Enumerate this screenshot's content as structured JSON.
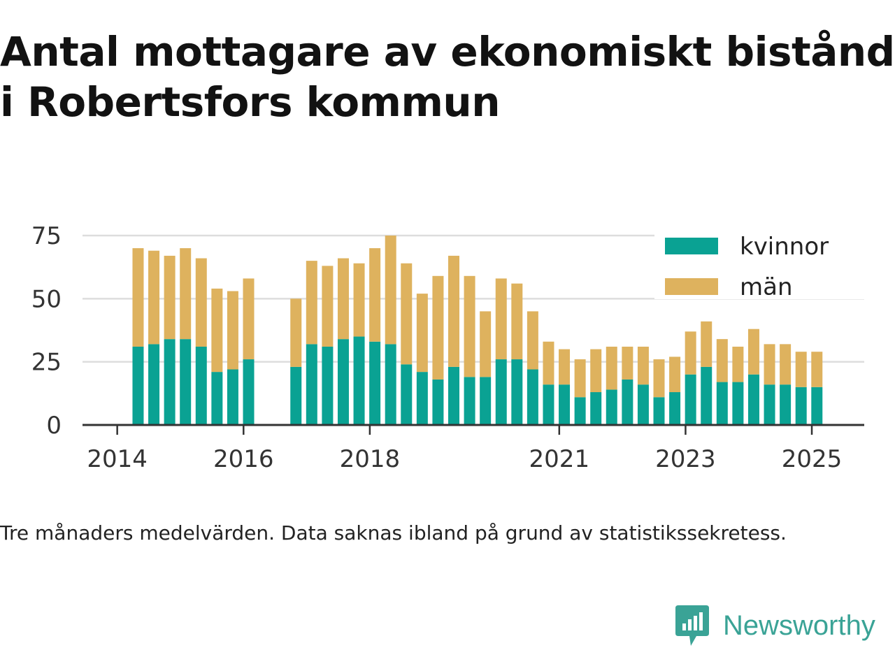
{
  "title_lines": [
    "Antal mottagare av ekonomiskt bistånd",
    "i Robertsfors kommun"
  ],
  "footnote": "Tre månaders medelvärden. Data saknas ibland på grund av statistikssekretess.",
  "brand": {
    "name": "Newsworthy",
    "icon": "newsworthy-logo-icon",
    "color": "#3aa396"
  },
  "chart_data": {
    "type": "bar",
    "stacked": true,
    "x": [
      2014.33,
      2014.58,
      2014.83,
      2015.08,
      2015.33,
      2015.58,
      2015.83,
      2016.08,
      2016.83,
      2017.08,
      2017.33,
      2017.58,
      2017.83,
      2018.08,
      2018.33,
      2018.58,
      2018.83,
      2019.08,
      2019.33,
      2019.58,
      2019.83,
      2020.08,
      2020.33,
      2020.58,
      2020.83,
      2021.08,
      2021.33,
      2021.58,
      2021.83,
      2022.08,
      2022.33,
      2022.58,
      2022.83,
      2023.08,
      2023.33,
      2023.58,
      2023.83,
      2024.08,
      2024.33,
      2024.58,
      2024.83,
      2025.08
    ],
    "series": [
      {
        "name": "kvinnor",
        "color": "#0aa293",
        "values": [
          31,
          32,
          34,
          34,
          31,
          21,
          22,
          26,
          23,
          32,
          31,
          34,
          35,
          33,
          32,
          24,
          21,
          18,
          23,
          19,
          19,
          26,
          26,
          22,
          16,
          16,
          11,
          13,
          14,
          18,
          16,
          11,
          13,
          20,
          23,
          17,
          17,
          20,
          16,
          16,
          15,
          15
        ]
      },
      {
        "name": "män",
        "color": "#deb25e",
        "values": [
          39,
          37,
          33,
          36,
          35,
          33,
          31,
          32,
          27,
          33,
          32,
          32,
          29,
          37,
          43,
          40,
          31,
          41,
          44,
          40,
          26,
          32,
          30,
          23,
          17,
          14,
          15,
          17,
          17,
          13,
          15,
          15,
          14,
          17,
          18,
          17,
          14,
          18,
          16,
          16,
          14,
          14
        ]
      }
    ],
    "xticks": [
      2014,
      2016,
      2018,
      2021,
      2023,
      2025
    ],
    "xtick_labels": [
      "2014",
      "2016",
      "2018",
      "2021",
      "2023",
      "2025"
    ],
    "yticks": [
      0,
      25,
      50,
      75
    ],
    "ytick_labels": [
      "0",
      "25",
      "50",
      "75"
    ],
    "xlim": [
      2013.45,
      2025.83
    ],
    "ylim": [
      0,
      75
    ],
    "grid": "horizontal",
    "legend": "top-right",
    "title": "Antal mottagare av ekonomiskt bistånd i Robertsfors kommun",
    "xlabel": "",
    "ylabel": ""
  }
}
